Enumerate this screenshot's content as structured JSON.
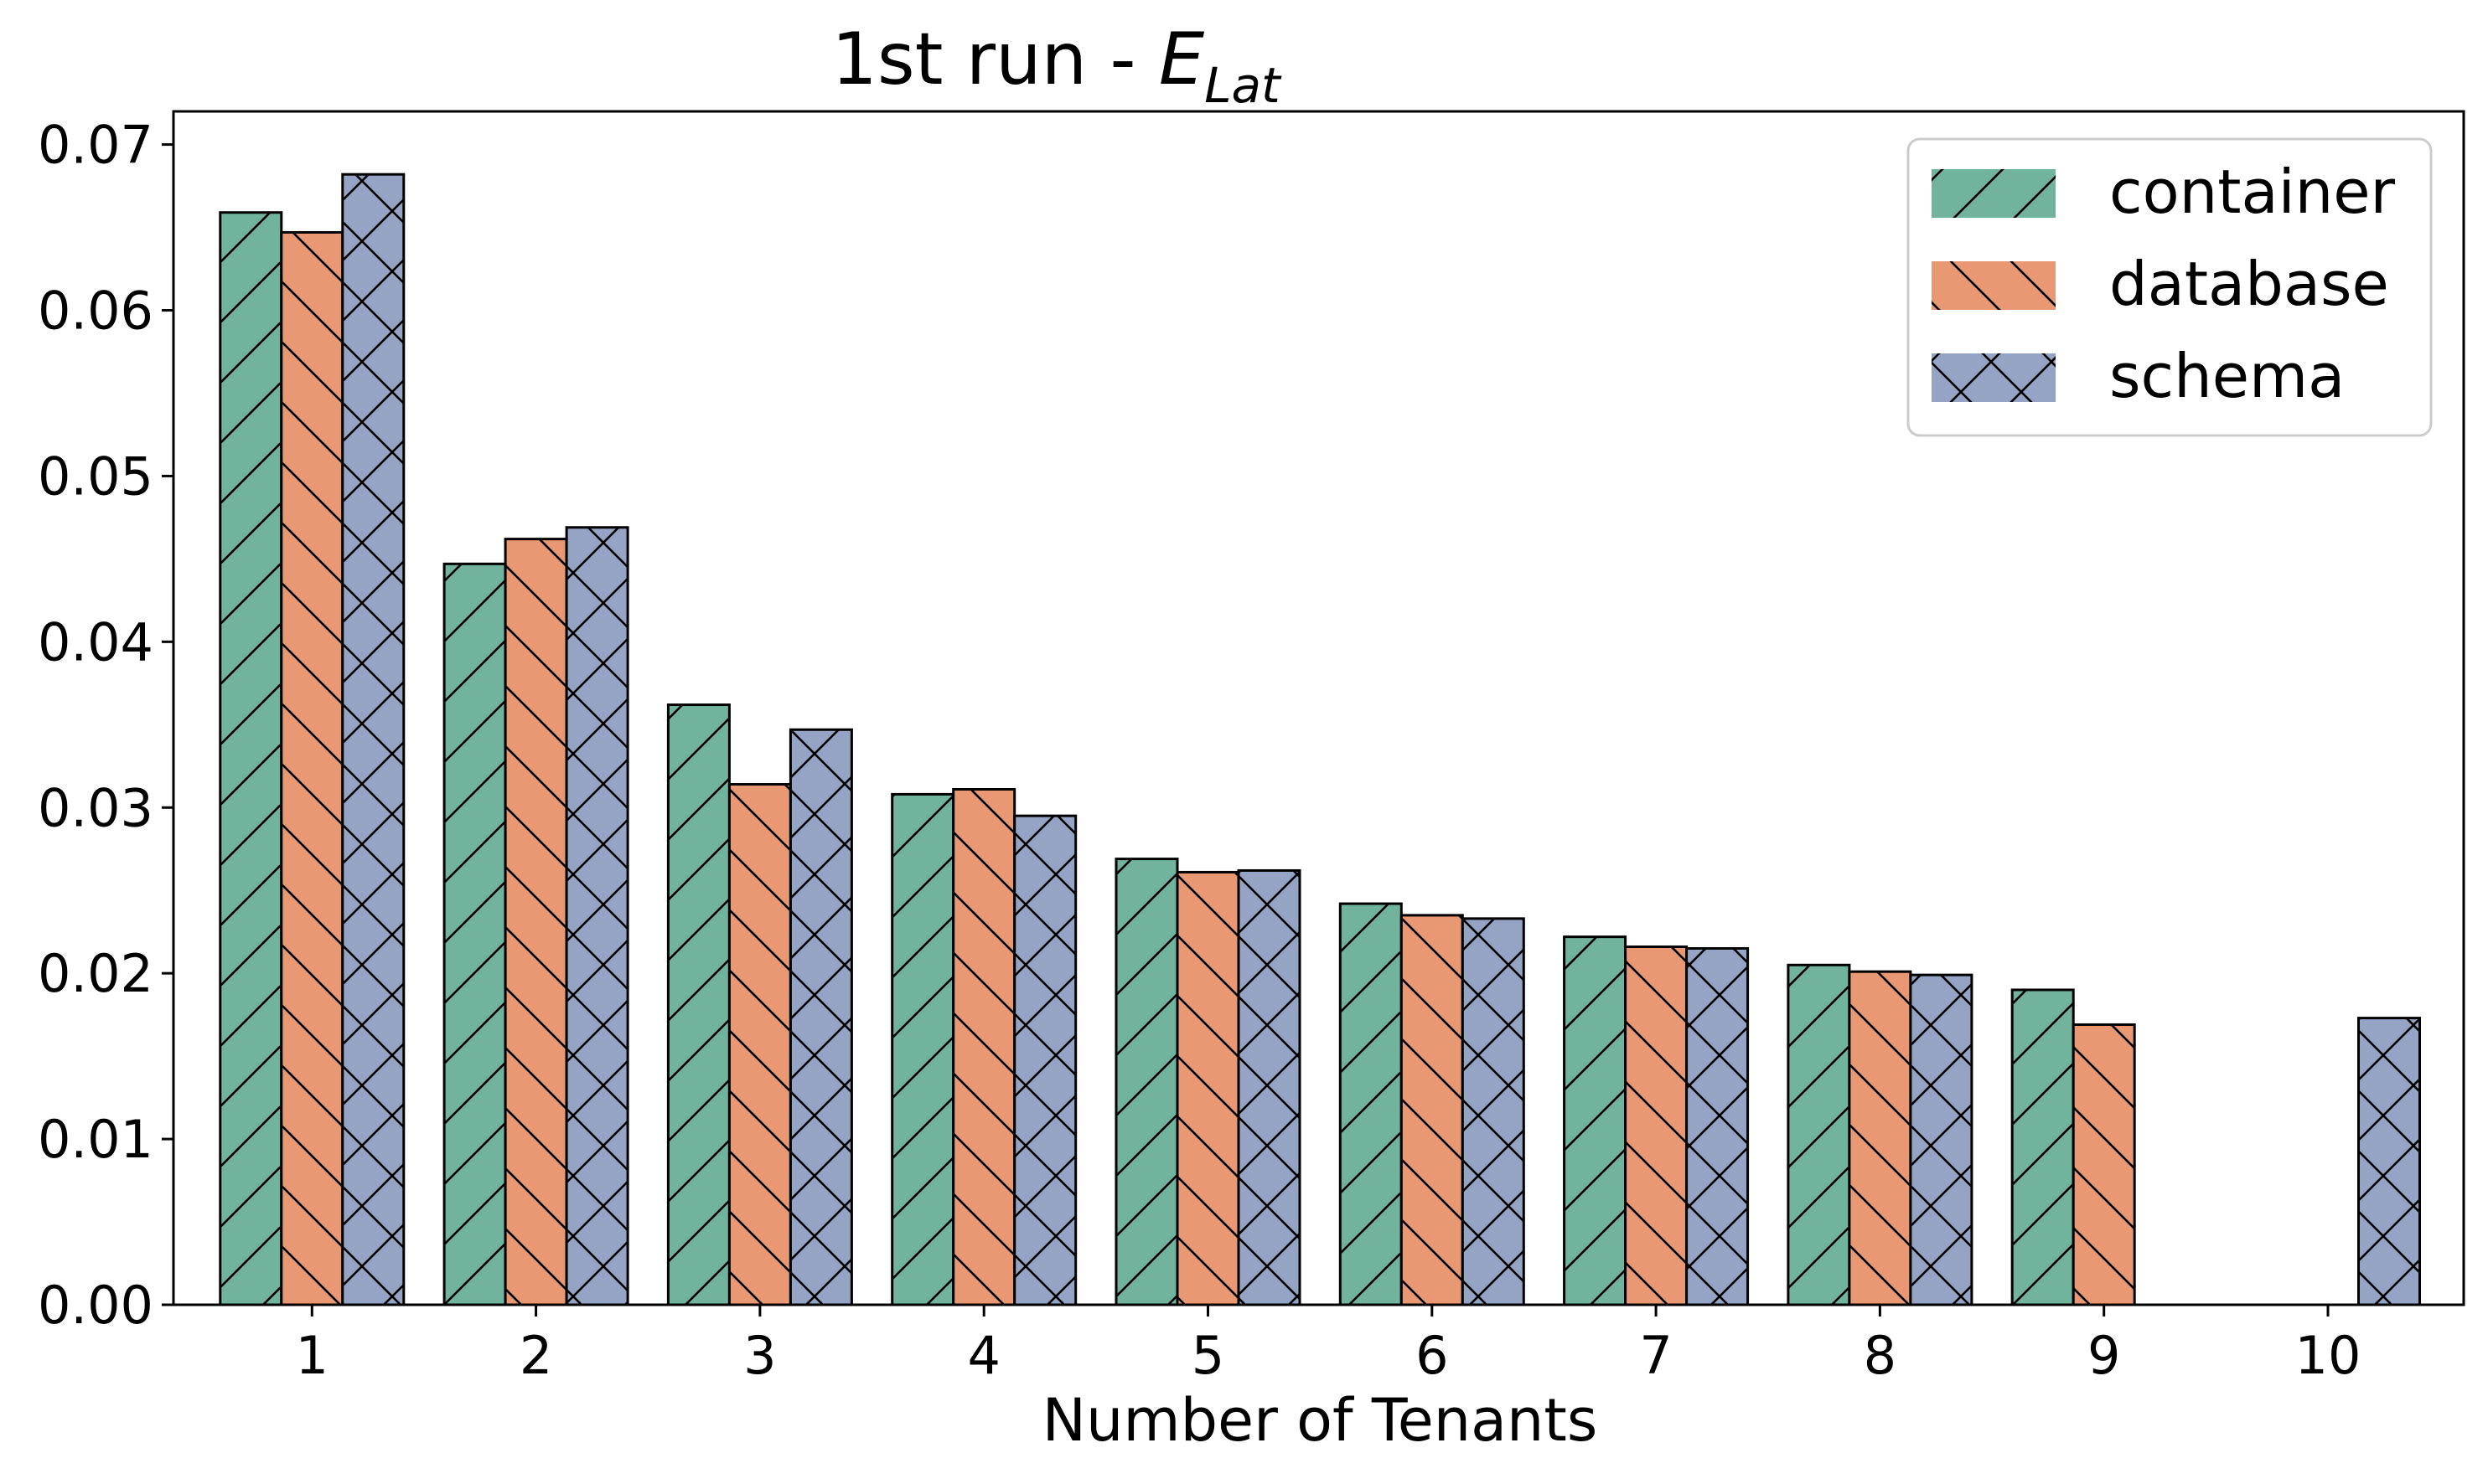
{
  "chart_data": {
    "type": "bar",
    "title": "1st run - ",
    "title_math": {
      "base": "E",
      "subscript": "Lat"
    },
    "xlabel": "Number of Tenants",
    "ylabel": "",
    "categories": [
      "1",
      "2",
      "3",
      "4",
      "5",
      "6",
      "7",
      "8",
      "9",
      "10"
    ],
    "ylim": [
      0,
      0.072
    ],
    "yticks": [
      "0.00",
      "0.01",
      "0.02",
      "0.03",
      "0.04",
      "0.05",
      "0.06",
      "0.07"
    ],
    "grid": false,
    "legend_position": "top-right",
    "series": [
      {
        "name": "container",
        "color": "#72b39e",
        "hatch": "diagonal-forward",
        "values": [
          0.0659,
          0.0447,
          0.0362,
          0.0308,
          0.0269,
          0.0242,
          0.0222,
          0.0205,
          0.019,
          null
        ]
      },
      {
        "name": "database",
        "color": "#e89873",
        "hatch": "diagonal-back",
        "values": [
          0.0647,
          0.0462,
          0.0314,
          0.0311,
          0.0261,
          0.0235,
          0.0216,
          0.0201,
          0.0169,
          null
        ]
      },
      {
        "name": "schema",
        "color": "#95a4c4",
        "hatch": "cross",
        "values": [
          0.0682,
          0.0469,
          0.0347,
          0.0295,
          0.0262,
          0.0233,
          0.0215,
          0.0199,
          null,
          0.0173
        ]
      }
    ]
  }
}
